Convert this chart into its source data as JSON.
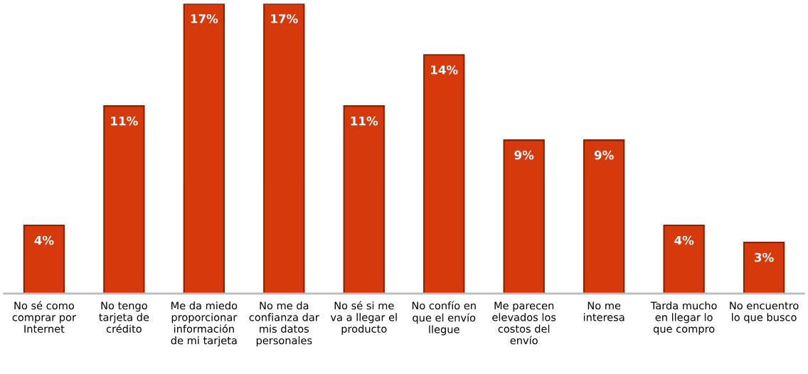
{
  "chart_data": {
    "type": "bar",
    "categories": [
      "No sé como\ncomprar por\nInternet",
      "No tengo\ntarjeta de\ncrédito",
      "Me da miedo\nproporcionar\ninformación\nde mi tarjeta",
      "No me da\nconfianza dar\nmis datos\npersonales",
      "No sé si me\nva a llegar el\nproducto",
      "No confío en\nque el envío\nllegue",
      "Me parecen\nelevados los\ncostos del\nenvío",
      "No me\ninteresa",
      "Tarda mucho\nen llegar lo\nque compro",
      "No encuentro\nlo que busco"
    ],
    "values": [
      4,
      11,
      17,
      17,
      11,
      14,
      9,
      9,
      4,
      3
    ],
    "value_labels": [
      "4%",
      "11%",
      "17%",
      "17%",
      "11%",
      "14%",
      "9%",
      "9%",
      "4%",
      "3%"
    ],
    "color": "#d63a0c"
  }
}
